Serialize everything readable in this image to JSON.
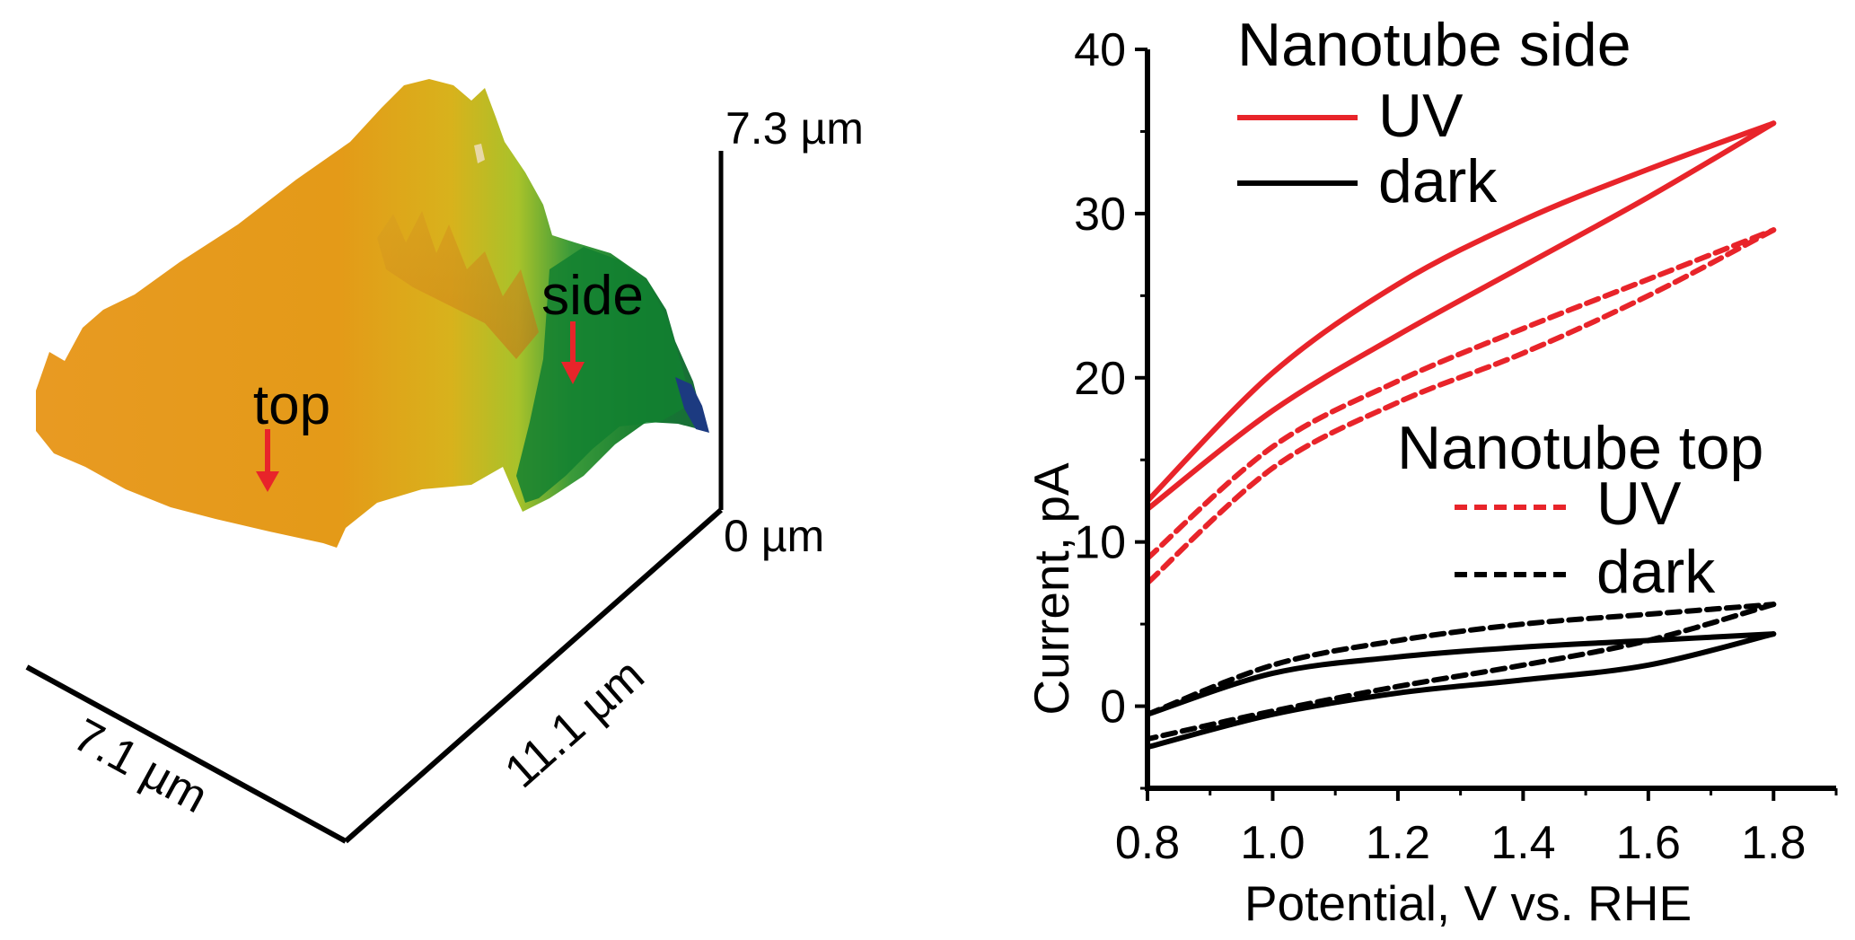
{
  "afm": {
    "height_top_label": "7.3 µm",
    "height_bottom_label": "0 µm",
    "width_label": "7.1 µm",
    "depth_label": "11.1 µm",
    "marker_top": "top",
    "marker_side": "side"
  },
  "chart_data": {
    "type": "line",
    "xlabel": "Potential, V vs. RHE",
    "ylabel": "Current, pA",
    "xlim": [
      0.8,
      1.9
    ],
    "ylim": [
      -5,
      40
    ],
    "xticks": [
      "0.8",
      "1.0",
      "1.2",
      "1.4",
      "1.6",
      "1.8"
    ],
    "yticks": [
      "0",
      "10",
      "20",
      "30",
      "40"
    ],
    "legend": [
      {
        "group": "Nanotube side",
        "entries": [
          "UV",
          "dark"
        ]
      },
      {
        "group": "Nanotube top",
        "entries": [
          "UV",
          "dark"
        ]
      }
    ],
    "series": [
      {
        "name": "Nanotube side UV",
        "color": "#e8242a",
        "style": "solid",
        "forward_x": [
          0.8,
          1.0,
          1.2,
          1.4,
          1.6,
          1.8
        ],
        "forward_y": [
          12.5,
          20.3,
          25.7,
          29.6,
          32.7,
          35.5
        ],
        "reverse_x": [
          1.8,
          1.6,
          1.4,
          1.2,
          1.0,
          0.8
        ],
        "reverse_y": [
          35.5,
          31.0,
          26.8,
          22.6,
          18.0,
          12.0
        ]
      },
      {
        "name": "Nanotube side dark",
        "color": "#000000",
        "style": "solid",
        "forward_x": [
          0.8,
          1.0,
          1.2,
          1.4,
          1.6,
          1.8
        ],
        "forward_y": [
          -0.5,
          2.0,
          3.0,
          3.6,
          4.0,
          4.4
        ],
        "reverse_x": [
          1.8,
          1.6,
          1.4,
          1.2,
          1.0,
          0.8
        ],
        "reverse_y": [
          4.4,
          2.5,
          1.6,
          0.8,
          -0.5,
          -2.5
        ]
      },
      {
        "name": "Nanotube top UV",
        "color": "#e8242a",
        "style": "dashed",
        "forward_x": [
          0.8,
          1.0,
          1.2,
          1.4,
          1.6,
          1.8
        ],
        "forward_y": [
          9.0,
          15.8,
          19.8,
          23.0,
          26.0,
          29.0
        ],
        "reverse_x": [
          1.8,
          1.6,
          1.4,
          1.2,
          1.0,
          0.8
        ],
        "reverse_y": [
          29.0,
          25.0,
          21.5,
          18.5,
          14.5,
          7.5
        ]
      },
      {
        "name": "Nanotube top dark",
        "color": "#000000",
        "style": "dashed",
        "forward_x": [
          0.8,
          1.0,
          1.2,
          1.4,
          1.6,
          1.8
        ],
        "forward_y": [
          -0.5,
          2.5,
          4.0,
          5.0,
          5.6,
          6.2
        ],
        "reverse_x": [
          1.8,
          1.6,
          1.4,
          1.2,
          1.0,
          0.8
        ],
        "reverse_y": [
          6.2,
          4.0,
          2.5,
          1.2,
          -0.3,
          -2.0
        ]
      }
    ]
  }
}
